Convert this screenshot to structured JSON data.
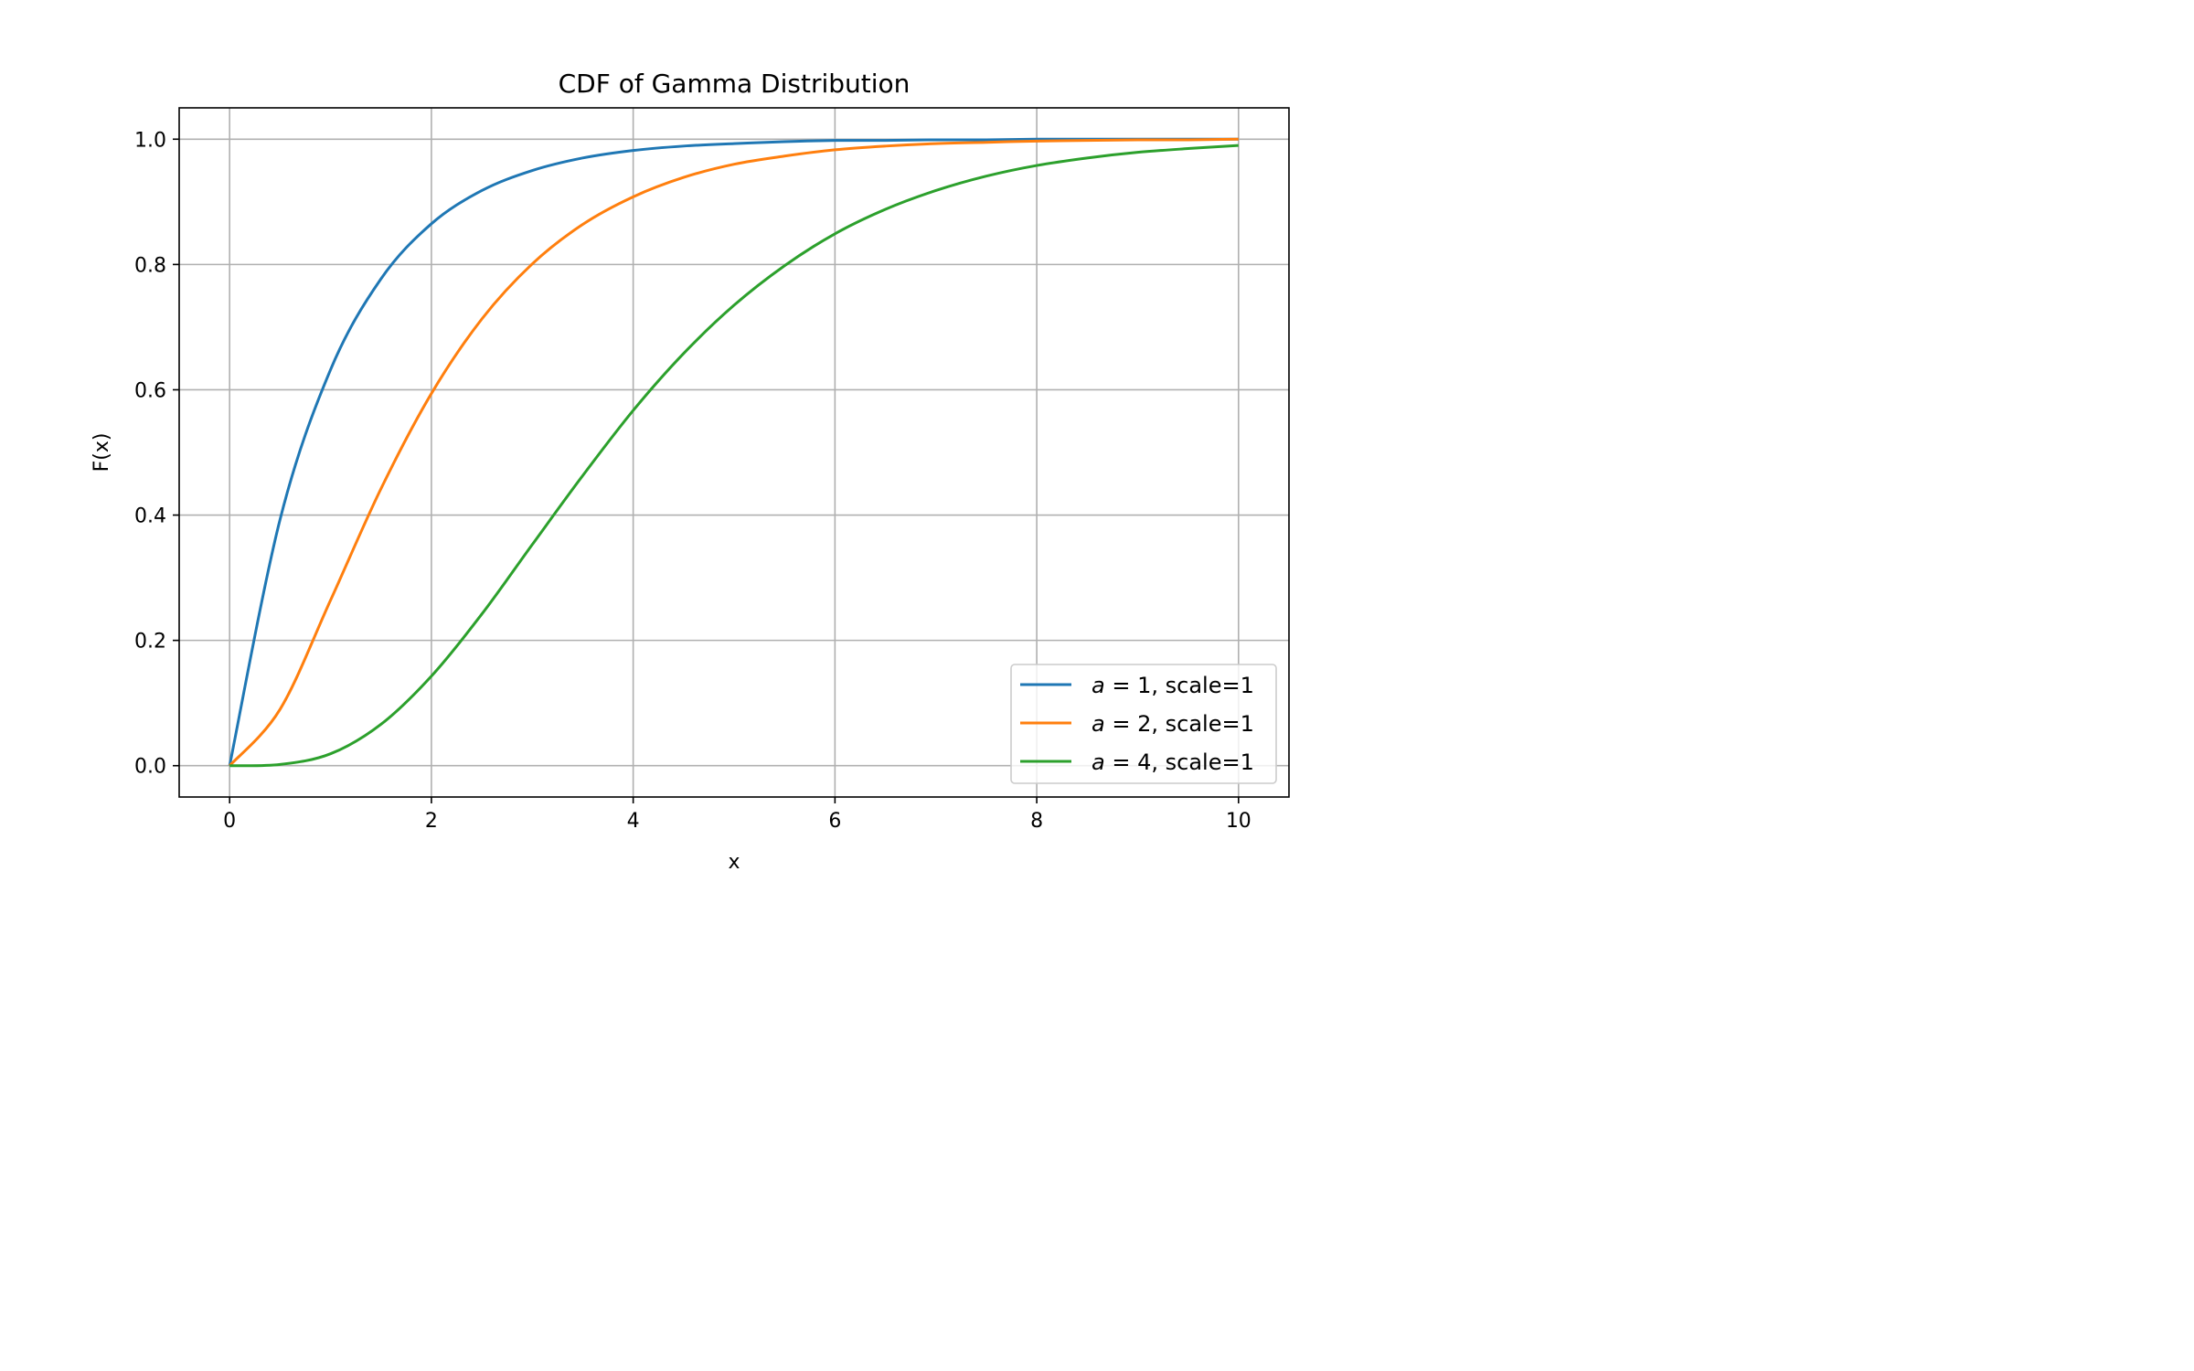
{
  "chart_data": {
    "type": "line",
    "title": "CDF of Gamma Distribution",
    "xlabel": "x",
    "ylabel": "F(x)",
    "xlim": [
      -0.5,
      10.5
    ],
    "ylim": [
      -0.05,
      1.05
    ],
    "xticks": [
      0,
      2,
      4,
      6,
      8,
      10
    ],
    "xtick_labels": [
      "0",
      "2",
      "4",
      "6",
      "8",
      "10"
    ],
    "yticks": [
      0.0,
      0.2,
      0.4,
      0.6,
      0.8,
      1.0
    ],
    "ytick_labels": [
      "0.0",
      "0.2",
      "0.4",
      "0.6",
      "0.8",
      "1.0"
    ],
    "grid": true,
    "legend_position": "lower-right",
    "x": [
      0,
      0.5,
      1,
      1.5,
      2,
      2.5,
      3,
      3.5,
      4,
      4.5,
      5,
      5.5,
      6,
      6.5,
      7,
      7.5,
      8,
      8.5,
      9,
      9.5,
      10
    ],
    "series": [
      {
        "name_prefix": "a",
        "name_value": "1",
        "name_suffix": ", scale=1",
        "color": "#1f77b4",
        "values": [
          0.0,
          0.393,
          0.632,
          0.777,
          0.865,
          0.918,
          0.95,
          0.97,
          0.982,
          0.989,
          0.993,
          0.996,
          0.998,
          0.998,
          0.999,
          0.999,
          1.0,
          1.0,
          1.0,
          1.0,
          1.0
        ]
      },
      {
        "name_prefix": "a",
        "name_value": "2",
        "name_suffix": ", scale=1",
        "color": "#ff7f0e",
        "values": [
          0.0,
          0.09,
          0.264,
          0.442,
          0.594,
          0.713,
          0.801,
          0.864,
          0.908,
          0.939,
          0.96,
          0.973,
          0.983,
          0.989,
          0.993,
          0.995,
          0.997,
          0.998,
          0.999,
          0.999,
          1.0
        ]
      },
      {
        "name_prefix": "a",
        "name_value": "4",
        "name_suffix": ", scale=1",
        "color": "#2ca02c",
        "values": [
          0.0,
          0.002,
          0.019,
          0.066,
          0.143,
          0.242,
          0.353,
          0.463,
          0.567,
          0.658,
          0.735,
          0.798,
          0.849,
          0.888,
          0.918,
          0.941,
          0.958,
          0.97,
          0.979,
          0.985,
          0.99
        ]
      }
    ]
  }
}
